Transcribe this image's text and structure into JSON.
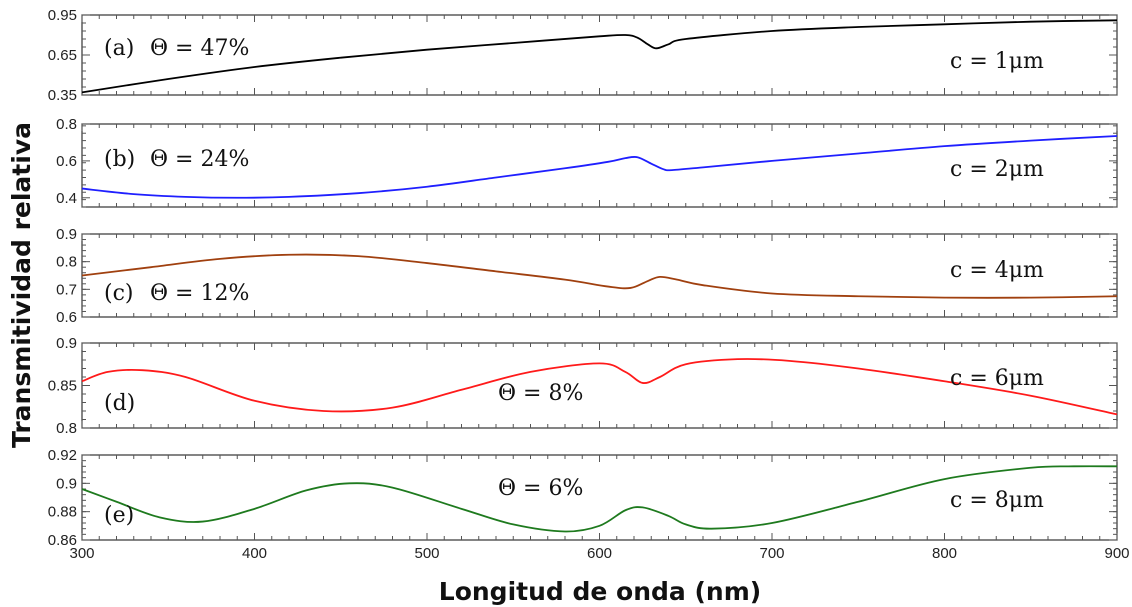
{
  "chart_data": {
    "type": "line",
    "xlabel": "Longitud de onda (nm)",
    "ylabel": "Transmitividad relativa",
    "xlim": [
      300,
      900
    ],
    "xticks": [
      300,
      400,
      500,
      600,
      700,
      800,
      900
    ],
    "grid": false,
    "panels": [
      {
        "panel_label": "(a)",
        "theta": "Θ = 47%",
        "c_label": "c = 1μm",
        "color": "#000000",
        "ylim": [
          0.35,
          0.95
        ],
        "yticks": [
          0.35,
          0.65,
          0.95
        ],
        "ytick_labels": [
          "0.35",
          "0.65",
          "0.95"
        ],
        "x": [
          300,
          350,
          400,
          450,
          500,
          550,
          600,
          615,
          622,
          628,
          633,
          640,
          650,
          700,
          750,
          800,
          850,
          900
        ],
        "y": [
          0.37,
          0.47,
          0.56,
          0.63,
          0.69,
          0.74,
          0.79,
          0.8,
          0.78,
          0.73,
          0.7,
          0.73,
          0.77,
          0.83,
          0.86,
          0.88,
          0.9,
          0.91
        ]
      },
      {
        "panel_label": "(b)",
        "theta": "Θ = 24%",
        "c_label": "c = 2μm",
        "color": "#1f1fff",
        "ylim": [
          0.35,
          0.8
        ],
        "yticks": [
          0.4,
          0.6,
          0.8
        ],
        "ytick_labels": [
          "0.4",
          "0.6",
          "0.8"
        ],
        "x": [
          300,
          330,
          360,
          390,
          420,
          460,
          500,
          540,
          580,
          605,
          615,
          622,
          630,
          637,
          642,
          660,
          700,
          750,
          800,
          850,
          900
        ],
        "y": [
          0.45,
          0.42,
          0.405,
          0.4,
          0.405,
          0.425,
          0.46,
          0.51,
          0.56,
          0.595,
          0.615,
          0.62,
          0.585,
          0.555,
          0.55,
          0.565,
          0.6,
          0.64,
          0.68,
          0.71,
          0.735
        ]
      },
      {
        "panel_label": "(c)",
        "theta": "Θ = 12%",
        "c_label": "c = 4μm",
        "color": "#a0400f",
        "ylim": [
          0.6,
          0.9
        ],
        "yticks": [
          0.6,
          0.7,
          0.8,
          0.9
        ],
        "ytick_labels": [
          "0.6",
          "0.7",
          "0.8",
          "0.9"
        ],
        "x": [
          300,
          340,
          380,
          420,
          460,
          500,
          540,
          580,
          605,
          618,
          628,
          635,
          645,
          660,
          700,
          750,
          800,
          850,
          900
        ],
        "y": [
          0.75,
          0.78,
          0.81,
          0.825,
          0.82,
          0.795,
          0.765,
          0.735,
          0.71,
          0.705,
          0.73,
          0.745,
          0.735,
          0.715,
          0.685,
          0.675,
          0.67,
          0.67,
          0.675
        ]
      },
      {
        "panel_label": "(d)",
        "theta": "Θ = 8%",
        "c_label": "c = 6μm",
        "color": "#ff1a1a",
        "ylim": [
          0.8,
          0.9
        ],
        "yticks": [
          0.8,
          0.85,
          0.9
        ],
        "ytick_labels": [
          "0.8",
          "0.85",
          "0.9"
        ],
        "x": [
          300,
          315,
          335,
          360,
          400,
          440,
          480,
          520,
          560,
          600,
          615,
          625,
          635,
          650,
          680,
          710,
          750,
          800,
          850,
          900
        ],
        "y": [
          0.855,
          0.866,
          0.868,
          0.86,
          0.832,
          0.82,
          0.824,
          0.845,
          0.866,
          0.876,
          0.866,
          0.853,
          0.86,
          0.875,
          0.881,
          0.879,
          0.87,
          0.855,
          0.838,
          0.816
        ]
      },
      {
        "panel_label": "(e)",
        "theta": "Θ = 6%",
        "c_label": "c = 8μm",
        "color": "#1e7a1e",
        "ylim": [
          0.86,
          0.92
        ],
        "yticks": [
          0.86,
          0.88,
          0.9,
          0.92
        ],
        "ytick_labels": [
          "0.86",
          "0.88",
          "0.9",
          "0.92"
        ],
        "x": [
          300,
          320,
          345,
          370,
          400,
          430,
          455,
          480,
          520,
          550,
          580,
          600,
          615,
          625,
          640,
          650,
          665,
          700,
          750,
          800,
          850,
          875,
          900
        ],
        "y": [
          0.896,
          0.887,
          0.876,
          0.873,
          0.882,
          0.895,
          0.9,
          0.897,
          0.882,
          0.871,
          0.866,
          0.87,
          0.881,
          0.883,
          0.877,
          0.871,
          0.868,
          0.872,
          0.887,
          0.903,
          0.911,
          0.912,
          0.912
        ]
      }
    ]
  }
}
